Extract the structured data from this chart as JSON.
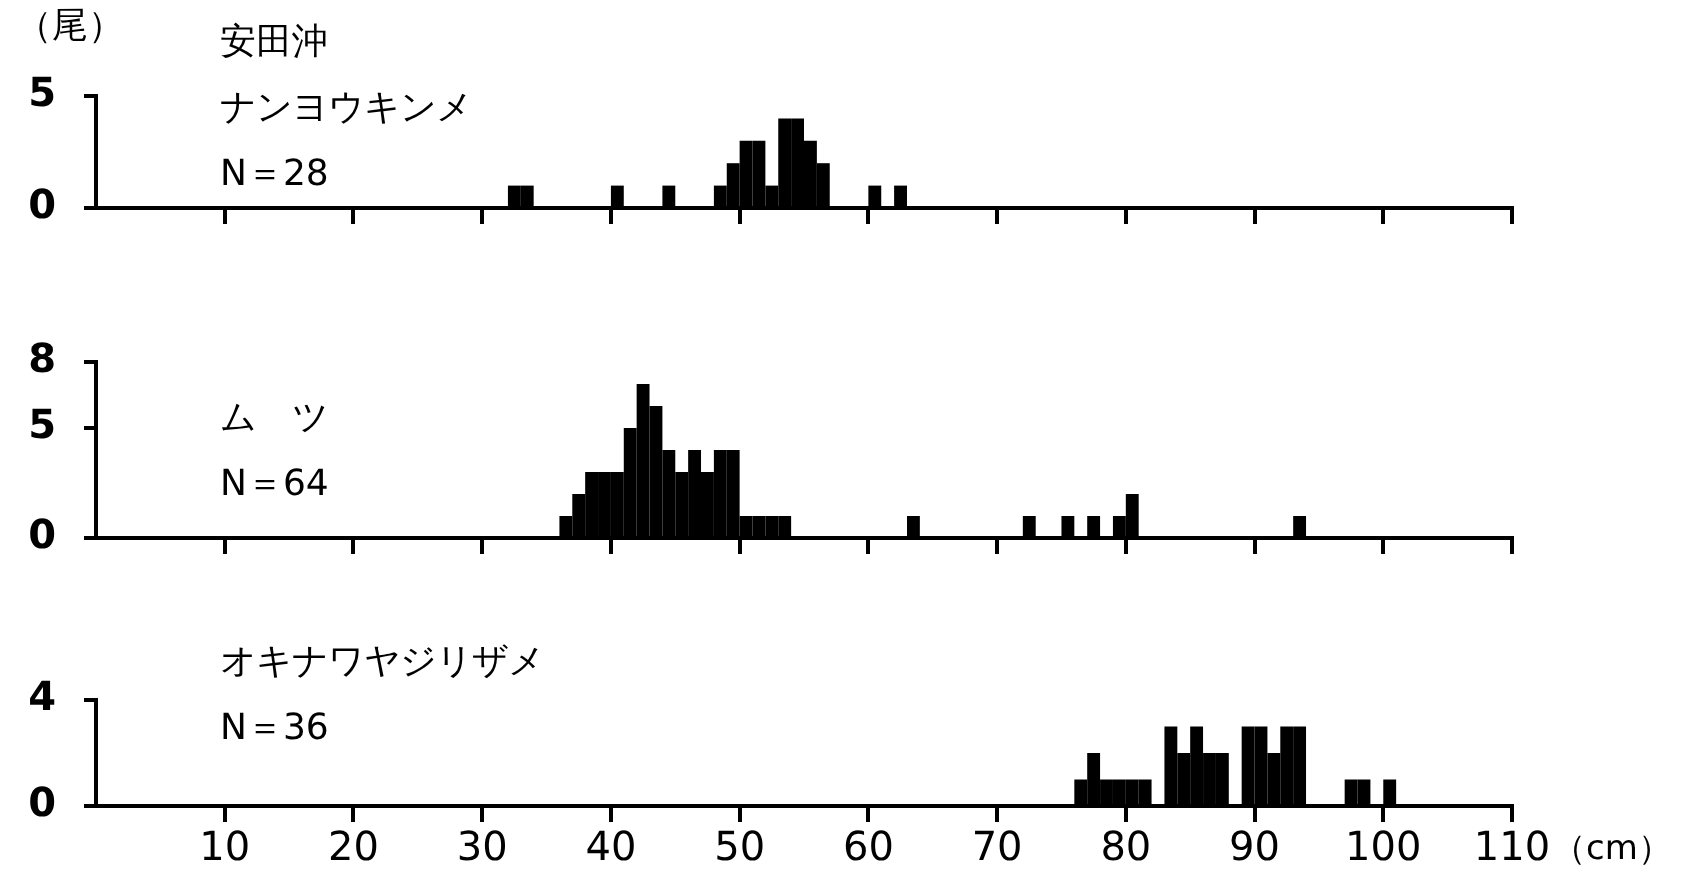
{
  "chart_data": [
    {
      "type": "histogram",
      "ylabel": "（尾）",
      "annotations": [
        "安田沖",
        "ナンヨウキンメ",
        "N＝28"
      ],
      "bins": [
        32,
        33,
        34,
        35,
        36,
        37,
        38,
        39,
        40,
        41,
        42,
        43,
        44,
        45,
        46,
        47,
        48,
        49,
        50,
        51,
        52,
        53,
        54,
        55,
        56,
        57,
        58,
        59,
        60,
        61,
        62,
        63
      ],
      "values": [
        1,
        1,
        0,
        0,
        0,
        0,
        0,
        0,
        1,
        0,
        0,
        0,
        1,
        0,
        0,
        0,
        1,
        2,
        3,
        3,
        1,
        4,
        4,
        3,
        2,
        0,
        0,
        0,
        1,
        0,
        1
      ],
      "color": "#000000",
      "xlim": [
        0,
        110
      ],
      "xticks": [
        10,
        20,
        30,
        40,
        50,
        60,
        70,
        80,
        90,
        100,
        110
      ],
      "ylim": [
        0,
        5
      ],
      "yticks": [
        0,
        5
      ],
      "tick_labels": "y"
    },
    {
      "type": "histogram",
      "annotations": [
        "ム　ツ",
        "N＝64"
      ],
      "bins": [
        36,
        37,
        38,
        39,
        40,
        41,
        42,
        43,
        44,
        45,
        46,
        47,
        48,
        49,
        50,
        51,
        52,
        53,
        54,
        55,
        56,
        57,
        58,
        59,
        60,
        61,
        62,
        63,
        64,
        65,
        66,
        67,
        68,
        69,
        70,
        71,
        72,
        73,
        74,
        75,
        76,
        77,
        78,
        79,
        80,
        81,
        82,
        83,
        84,
        85,
        86,
        87,
        88,
        89,
        90,
        91,
        92,
        93,
        94
      ],
      "values": [
        1,
        2,
        3,
        3,
        3,
        5,
        7,
        6,
        4,
        3,
        4,
        3,
        4,
        4,
        1,
        1,
        1,
        1,
        0,
        0,
        0,
        0,
        0,
        0,
        0,
        0,
        0,
        1,
        0,
        0,
        0,
        0,
        0,
        0,
        0,
        0,
        1,
        0,
        0,
        1,
        0,
        1,
        0,
        1,
        2,
        0,
        0,
        0,
        0,
        0,
        0,
        0,
        0,
        0,
        0,
        0,
        0,
        1
      ],
      "color": "#000000",
      "xlim": [
        0,
        110
      ],
      "xticks": [
        10,
        20,
        30,
        40,
        50,
        60,
        70,
        80,
        90,
        100,
        110
      ],
      "ylim": [
        0,
        8
      ],
      "yticks": [
        0,
        5,
        8
      ],
      "tick_labels": "y"
    },
    {
      "type": "histogram",
      "xlabel": "（cm）",
      "annotations": [
        "オキナワヤジリザメ",
        "N＝36"
      ],
      "bins": [
        76,
        77,
        78,
        79,
        80,
        81,
        82,
        83,
        84,
        85,
        86,
        87,
        88,
        89,
        90,
        91,
        92,
        93,
        94,
        95,
        96,
        97,
        98,
        99,
        100,
        101
      ],
      "values": [
        1,
        2,
        1,
        1,
        1,
        1,
        0,
        3,
        2,
        3,
        2,
        2,
        0,
        3,
        3,
        2,
        3,
        3,
        0,
        0,
        0,
        1,
        1,
        0,
        1
      ],
      "color": "#000000",
      "xlim": [
        0,
        110
      ],
      "xticks": [
        10,
        20,
        30,
        40,
        50,
        60,
        70,
        80,
        90,
        100,
        110
      ],
      "ylim": [
        0,
        4
      ],
      "yticks": [
        0,
        4
      ]
    }
  ]
}
